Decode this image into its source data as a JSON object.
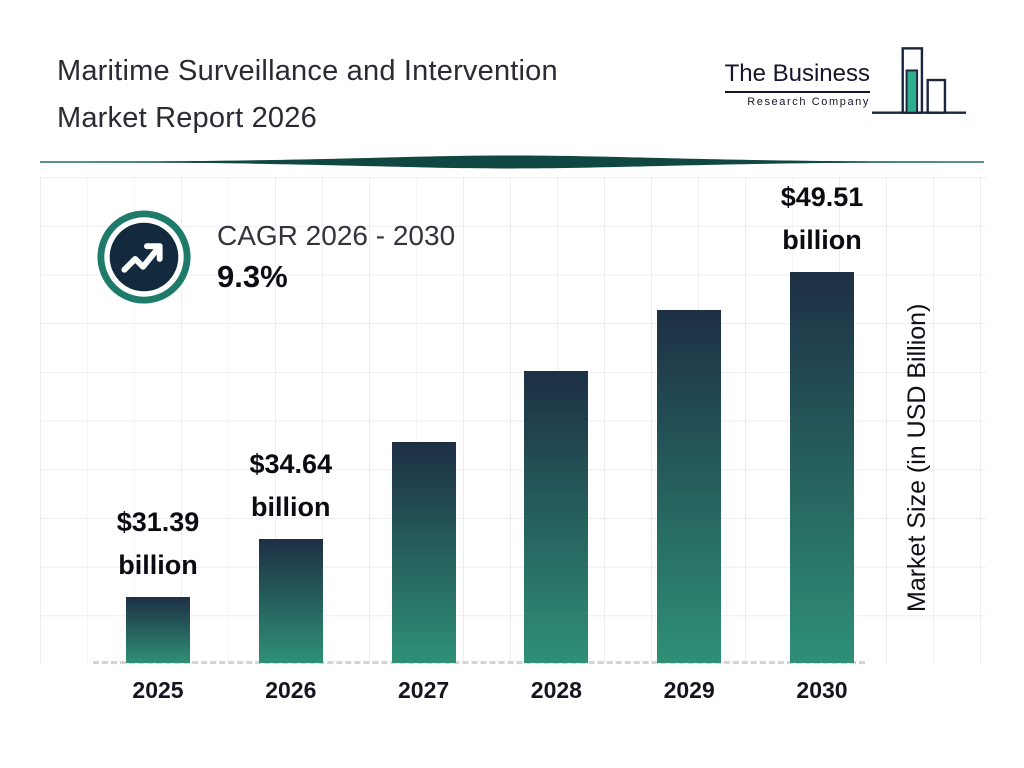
{
  "header": {
    "title_line1": "Maritime Surveillance and Intervention",
    "title_line2": "Market Report 2026",
    "logo": {
      "line1": "The Business",
      "line2": "Research Company",
      "icon": "bar-chart-logo-icon"
    }
  },
  "cagr": {
    "label": "CAGR 2026 - 2030",
    "value": "9.3%",
    "icon": "trend-up-arrow-icon"
  },
  "chart_data": {
    "type": "bar",
    "title": "Maritime Surveillance and Intervention Market Report 2026",
    "categories": [
      "2025",
      "2026",
      "2027",
      "2028",
      "2029",
      "2030"
    ],
    "values": [
      31.39,
      34.64,
      40.0,
      44.0,
      47.4,
      49.51
    ],
    "labeled_values": [
      {
        "index": 0,
        "line1": "$31.39",
        "line2": "billion"
      },
      {
        "index": 1,
        "line1": "$34.64",
        "line2": "billion"
      },
      {
        "index": 5,
        "line1": "$49.51",
        "line2": "billion"
      }
    ],
    "xlabel": "",
    "ylabel": "Market Size (in USD Billion)",
    "ylim": [
      27.7,
      49.51
    ],
    "grid": true,
    "legend": false,
    "colors": {
      "bar_gradient_top": "#1d2f44",
      "bar_gradient_bottom": "#2e9076",
      "accent_teal": "#1e7a69",
      "icon_navy": "#132a3e",
      "lens_teal": "#104741"
    }
  }
}
